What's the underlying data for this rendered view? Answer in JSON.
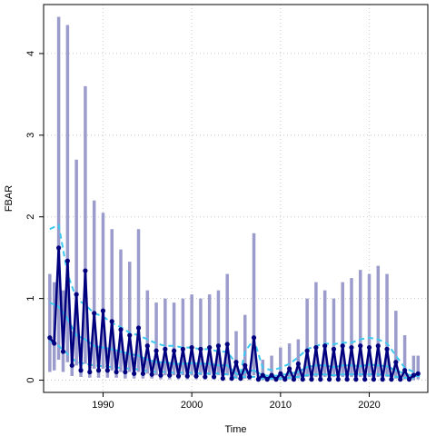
{
  "chart_data": {
    "type": "line",
    "title": "",
    "xlabel": "Time",
    "ylabel": "FBAR",
    "xlim": [
      1983.3,
      2026.6
    ],
    "ylim": [
      -0.15,
      4.6
    ],
    "x_ticks": [
      1990,
      2000,
      2010,
      2020
    ],
    "y_ticks": [
      0,
      1,
      2,
      3,
      4
    ],
    "grid": true,
    "legend": "none",
    "colors": {
      "interval": "#9c9ccc",
      "point_series": "#00007f",
      "central_line": "#3cc8f0",
      "bound_lines": "#3cc8f0",
      "grid": "#c8c8c8"
    },
    "series": [
      {
        "name": "",
        "style": "points-line",
        "x": [
          1984,
          1984.5,
          1985,
          1985.5,
          1986,
          1986.5,
          1987,
          1987.5,
          1988,
          1988.5,
          1989,
          1989.5,
          1990,
          1990.5,
          1991,
          1991.5,
          1992,
          1992.5,
          1993,
          1993.5,
          1994,
          1994.5,
          1995,
          1995.5,
          1996,
          1996.5,
          1997,
          1997.5,
          1998,
          1998.5,
          1999,
          1999.5,
          2000,
          2000.5,
          2001,
          2001.5,
          2002,
          2002.5,
          2003,
          2003.5,
          2004,
          2004.5,
          2005,
          2005.5,
          2006,
          2006.5,
          2007,
          2007.5,
          2008,
          2008.5,
          2009,
          2009.5,
          2010,
          2010.5,
          2011,
          2011.5,
          2012,
          2012.5,
          2013,
          2013.5,
          2014,
          2014.5,
          2015,
          2015.5,
          2016,
          2016.5,
          2017,
          2017.5,
          2018,
          2018.5,
          2019,
          2019.5,
          2020,
          2020.5,
          2021,
          2021.5,
          2022,
          2022.5,
          2023,
          2023.5,
          2024,
          2024.5,
          2025,
          2025.5
        ],
        "y": [
          0.52,
          0.45,
          1.62,
          0.35,
          1.46,
          0.18,
          1.05,
          0.12,
          1.34,
          0.1,
          0.82,
          0.12,
          0.85,
          0.12,
          0.72,
          0.1,
          0.62,
          0.1,
          0.55,
          0.08,
          0.64,
          0.08,
          0.42,
          0.07,
          0.36,
          0.06,
          0.38,
          0.06,
          0.36,
          0.05,
          0.38,
          0.05,
          0.4,
          0.05,
          0.38,
          0.04,
          0.4,
          0.04,
          0.42,
          0.02,
          0.44,
          0.02,
          0.22,
          0.02,
          0.18,
          0.04,
          0.52,
          0.01,
          0.06,
          0.01,
          0.06,
          0.01,
          0.08,
          0.01,
          0.14,
          0.01,
          0.2,
          0.01,
          0.36,
          0.01,
          0.4,
          0.01,
          0.42,
          0.01,
          0.38,
          0.01,
          0.42,
          0.01,
          0.4,
          0.01,
          0.42,
          0.01,
          0.4,
          0.01,
          0.42,
          0.01,
          0.38,
          0.01,
          0.22,
          0.01,
          0.12,
          0.01,
          0.06,
          0.08
        ]
      },
      {
        "name": "",
        "style": "interval",
        "x": [
          1984,
          1984.5,
          1985,
          1985.5,
          1986,
          1986.5,
          1987,
          1987.5,
          1988,
          1988.5,
          1989,
          1989.5,
          1990,
          1990.5,
          1991,
          1991.5,
          1992,
          1992.5,
          1993,
          1993.5,
          1994,
          1994.5,
          1995,
          1995.5,
          1996,
          1996.5,
          1997,
          1997.5,
          1998,
          1998.5,
          1999,
          1999.5,
          2000,
          2000.5,
          2001,
          2001.5,
          2002,
          2002.5,
          2003,
          2003.5,
          2004,
          2004.5,
          2005,
          2005.5,
          2006,
          2006.5,
          2007,
          2007.5,
          2008,
          2008.5,
          2009,
          2009.5,
          2010,
          2010.5,
          2011,
          2011.5,
          2012,
          2012.5,
          2013,
          2013.5,
          2014,
          2014.5,
          2015,
          2015.5,
          2016,
          2016.5,
          2017,
          2017.5,
          2018,
          2018.5,
          2019,
          2019.5,
          2020,
          2020.5,
          2021,
          2021.5,
          2022,
          2022.5,
          2023,
          2023.5,
          2024,
          2024.5,
          2025,
          2025.5
        ],
        "low": [
          0.1,
          0.12,
          0.25,
          0.1,
          0.22,
          0.05,
          0.18,
          0.04,
          0.2,
          0.03,
          0.14,
          0.03,
          0.14,
          0.03,
          0.12,
          0.03,
          0.1,
          0.02,
          0.1,
          0.02,
          0.1,
          0.02,
          0.08,
          0.02,
          0.06,
          0.01,
          0.06,
          0.01,
          0.06,
          0.01,
          0.06,
          0.01,
          0.06,
          0.01,
          0.06,
          0.01,
          0.06,
          0.01,
          0.06,
          0.0,
          0.06,
          0.0,
          0.02,
          0.0,
          0.02,
          0.0,
          0.06,
          0.0,
          0.0,
          0.0,
          0.0,
          0.0,
          0.0,
          0.0,
          0.01,
          0.0,
          0.02,
          0.0,
          0.04,
          0.0,
          0.04,
          0.0,
          0.04,
          0.0,
          0.04,
          0.0,
          0.04,
          0.0,
          0.04,
          0.0,
          0.04,
          0.0,
          0.04,
          0.0,
          0.04,
          0.0,
          0.04,
          0.0,
          0.02,
          0.0,
          0.01,
          0.0,
          0.0,
          0.01
        ],
        "high": [
          1.3,
          1.2,
          4.45,
          1.1,
          4.35,
          0.6,
          2.7,
          0.45,
          3.6,
          0.4,
          2.2,
          0.4,
          2.05,
          0.38,
          1.85,
          0.35,
          1.6,
          0.32,
          1.45,
          0.28,
          1.85,
          0.28,
          1.1,
          0.25,
          0.95,
          0.22,
          1.0,
          0.2,
          0.95,
          0.2,
          1.0,
          0.2,
          1.05,
          0.2,
          1.0,
          0.18,
          1.05,
          0.18,
          1.1,
          0.12,
          1.3,
          0.1,
          0.6,
          0.08,
          0.8,
          0.1,
          1.8,
          0.06,
          0.25,
          0.05,
          0.3,
          0.05,
          0.4,
          0.05,
          0.45,
          0.05,
          0.5,
          0.05,
          1.0,
          0.05,
          1.2,
          0.05,
          1.1,
          0.05,
          1.0,
          0.05,
          1.2,
          0.05,
          1.25,
          0.05,
          1.35,
          0.05,
          1.3,
          0.05,
          1.4,
          0.05,
          1.3,
          0.05,
          0.85,
          0.05,
          0.55,
          0.05,
          0.3,
          0.3
        ]
      },
      {
        "name": "",
        "style": "solid-line",
        "x": [
          1984,
          1985,
          1986,
          1987,
          1988,
          1989,
          1990,
          1991,
          1992,
          1993,
          1994,
          1995,
          1996,
          1997,
          1998,
          1999,
          2000,
          2001,
          2002,
          2003,
          2004,
          2005,
          2005.5,
          2006,
          2007,
          2008,
          2009,
          2010,
          2011,
          2012,
          2013,
          2014,
          2015,
          2016,
          2017,
          2018,
          2019,
          2020,
          2021,
          2022,
          2023,
          2024,
          2025,
          2025.7
        ],
        "y": [
          0.95,
          0.9,
          0.75,
          0.55,
          0.5,
          0.42,
          0.4,
          0.38,
          0.35,
          0.32,
          0.3,
          0.25,
          0.22,
          0.22,
          0.2,
          0.2,
          0.21,
          0.2,
          0.2,
          0.18,
          0.18,
          0.08,
          0.06,
          0.1,
          0.12,
          0.06,
          0.05,
          0.06,
          0.08,
          0.1,
          0.16,
          0.18,
          0.18,
          0.16,
          0.18,
          0.18,
          0.17,
          0.19,
          0.18,
          0.17,
          0.12,
          0.08,
          0.05,
          0.05
        ]
      },
      {
        "name": "",
        "style": "dashed-line",
        "x": [
          1984,
          1985,
          1986,
          1987,
          1988,
          1989,
          1990,
          1991,
          1992,
          1993,
          1994,
          1995,
          1996,
          1997,
          1998,
          1999,
          2000,
          2001,
          2002,
          2003,
          2004,
          2005,
          2005.5,
          2006,
          2007,
          2008,
          2009,
          2010,
          2011,
          2012,
          2013,
          2014,
          2015,
          2016,
          2017,
          2018,
          2019,
          2020,
          2021,
          2022,
          2023,
          2024,
          2025
        ],
        "y": [
          1.85,
          1.9,
          1.3,
          1.0,
          0.92,
          0.82,
          0.78,
          0.7,
          0.65,
          0.58,
          0.55,
          0.5,
          0.45,
          0.42,
          0.42,
          0.4,
          0.4,
          0.38,
          0.38,
          0.35,
          0.35,
          0.2,
          0.1,
          0.35,
          0.5,
          0.15,
          0.12,
          0.15,
          0.2,
          0.28,
          0.38,
          0.42,
          0.45,
          0.44,
          0.46,
          0.46,
          0.5,
          0.52,
          0.5,
          0.45,
          0.3,
          0.15,
          0.1
        ]
      },
      {
        "name": "",
        "style": "dashed-line",
        "x": [
          1984,
          1985,
          1986,
          1987,
          1988,
          1989,
          1990,
          1991,
          1992,
          1993,
          1994,
          1995,
          1996,
          1997,
          1998,
          1999,
          2000,
          2001,
          2002,
          2003,
          2004,
          2005,
          2006,
          2007,
          2008,
          2009,
          2010,
          2011,
          2012,
          2013,
          2014,
          2015,
          2016,
          2017,
          2018,
          2019,
          2020,
          2021,
          2022,
          2023,
          2024,
          2025
        ],
        "y": [
          0.48,
          0.42,
          0.32,
          0.22,
          0.2,
          0.18,
          0.17,
          0.16,
          0.15,
          0.14,
          0.13,
          0.11,
          0.1,
          0.1,
          0.09,
          0.09,
          0.09,
          0.08,
          0.08,
          0.08,
          0.07,
          0.03,
          0.04,
          0.04,
          0.02,
          0.02,
          0.02,
          0.03,
          0.04,
          0.06,
          0.07,
          0.07,
          0.06,
          0.07,
          0.07,
          0.07,
          0.07,
          0.07,
          0.06,
          0.04,
          0.03,
          0.02
        ]
      }
    ]
  }
}
